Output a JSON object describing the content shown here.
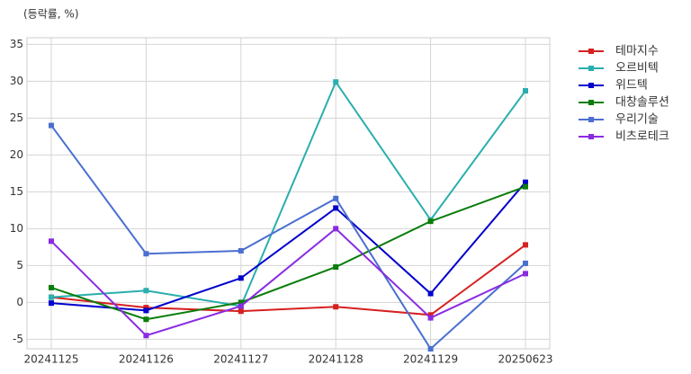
{
  "chart_data": {
    "type": "line",
    "y_label": "(등락률, %)",
    "categories": [
      "20241125",
      "20241126",
      "20241127",
      "20241128",
      "20241129",
      "20250623"
    ],
    "series": [
      {
        "name": "테마지수",
        "color": "#d62020",
        "values": [
          0.7,
          -0.7,
          -1.2,
          -0.6,
          -1.7,
          7.8
        ]
      },
      {
        "name": "오르비텍",
        "color": "#2aaeae",
        "values": [
          0.7,
          1.6,
          -0.5,
          29.9,
          11.2,
          28.7
        ]
      },
      {
        "name": "위드텍",
        "color": "#0000cc",
        "values": [
          -0.1,
          -1.1,
          3.3,
          12.8,
          1.2,
          16.3
        ]
      },
      {
        "name": "대창솔루션",
        "color": "#0a7d0a",
        "values": [
          2.0,
          -2.3,
          0.0,
          4.8,
          11.0,
          15.7
        ]
      },
      {
        "name": "우리기술",
        "color": "#4a6fd0",
        "values": [
          24.0,
          6.6,
          7.0,
          14.1,
          -6.3,
          5.3
        ]
      },
      {
        "name": "비츠로테크",
        "color": "#8a2be2",
        "values": [
          8.3,
          -4.5,
          -0.5,
          10.0,
          -2.1,
          3.9
        ]
      }
    ],
    "ylim": [
      -6.3,
      35.9
    ],
    "yticks": [
      -5,
      0,
      5,
      10,
      15,
      20,
      25,
      30,
      35
    ],
    "grid": true,
    "legend": "outside-right"
  }
}
